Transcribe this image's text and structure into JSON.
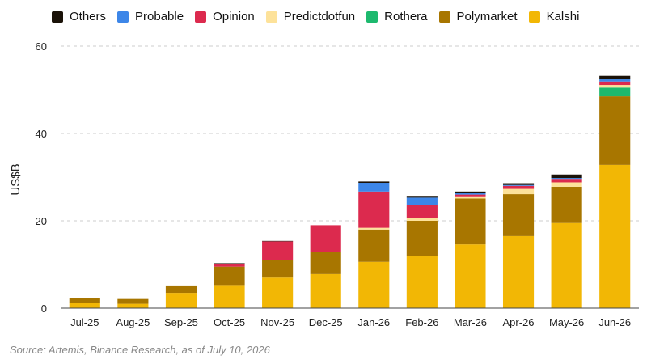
{
  "chart_data": {
    "type": "bar",
    "stacked": true,
    "title": "",
    "xlabel": "",
    "ylabel": "US$B",
    "ylim": [
      0,
      60
    ],
    "yticks": [
      0,
      20,
      40,
      60
    ],
    "grid": true,
    "legend_position": "top",
    "categories": [
      "Jul-25",
      "Aug-25",
      "Sep-25",
      "Oct-25",
      "Nov-25",
      "Dec-25",
      "Jan-26",
      "Feb-26",
      "Mar-26",
      "Apr-26",
      "May-26",
      "Jun-26"
    ],
    "series": [
      {
        "name": "Kalshi",
        "color": "#F2B705",
        "values": [
          1.2,
          1.0,
          3.5,
          5.3,
          7.0,
          7.8,
          10.6,
          12.0,
          14.6,
          16.5,
          19.5,
          32.8
        ]
      },
      {
        "name": "Polymarket",
        "color": "#A87600",
        "values": [
          1.1,
          1.1,
          1.7,
          4.2,
          4.1,
          5.0,
          7.4,
          8.0,
          10.5,
          9.6,
          8.3,
          15.7
        ]
      },
      {
        "name": "Rothera",
        "color": "#1DB96E",
        "values": [
          0,
          0,
          0,
          0,
          0,
          0,
          0,
          0,
          0,
          0,
          0,
          2.0
        ]
      },
      {
        "name": "Predictdotfun",
        "color": "#FDE29A",
        "values": [
          0,
          0,
          0,
          0,
          0,
          0,
          0.4,
          0.6,
          0.5,
          1.2,
          1.0,
          0.6
        ]
      },
      {
        "name": "Opinion",
        "color": "#DC2A4E",
        "values": [
          0,
          0,
          0,
          0.7,
          4.2,
          6.2,
          8.3,
          3.0,
          0.4,
          0.7,
          0.8,
          0.8
        ]
      },
      {
        "name": "Probable",
        "color": "#3D86E8",
        "values": [
          0,
          0,
          0,
          0,
          0,
          0,
          2.0,
          1.7,
          0.3,
          0.2,
          0.2,
          0.5
        ]
      },
      {
        "name": "Others",
        "color": "#1A1208",
        "values": [
          0,
          0,
          0,
          0.1,
          0.1,
          0,
          0.3,
          0.4,
          0.4,
          0.4,
          0.8,
          0.8
        ]
      }
    ]
  },
  "legend": {
    "items": [
      {
        "label": "Others",
        "color": "#1A1208"
      },
      {
        "label": "Probable",
        "color": "#3D86E8"
      },
      {
        "label": "Opinion",
        "color": "#DC2A4E"
      },
      {
        "label": "Predictdotfun",
        "color": "#FDE29A"
      },
      {
        "label": "Rothera",
        "color": "#1DB96E"
      },
      {
        "label": "Polymarket",
        "color": "#A87600"
      },
      {
        "label": "Kalshi",
        "color": "#F2B705"
      }
    ]
  },
  "source": "Source: Artemis, Binance Research, as of July 10, 2026"
}
